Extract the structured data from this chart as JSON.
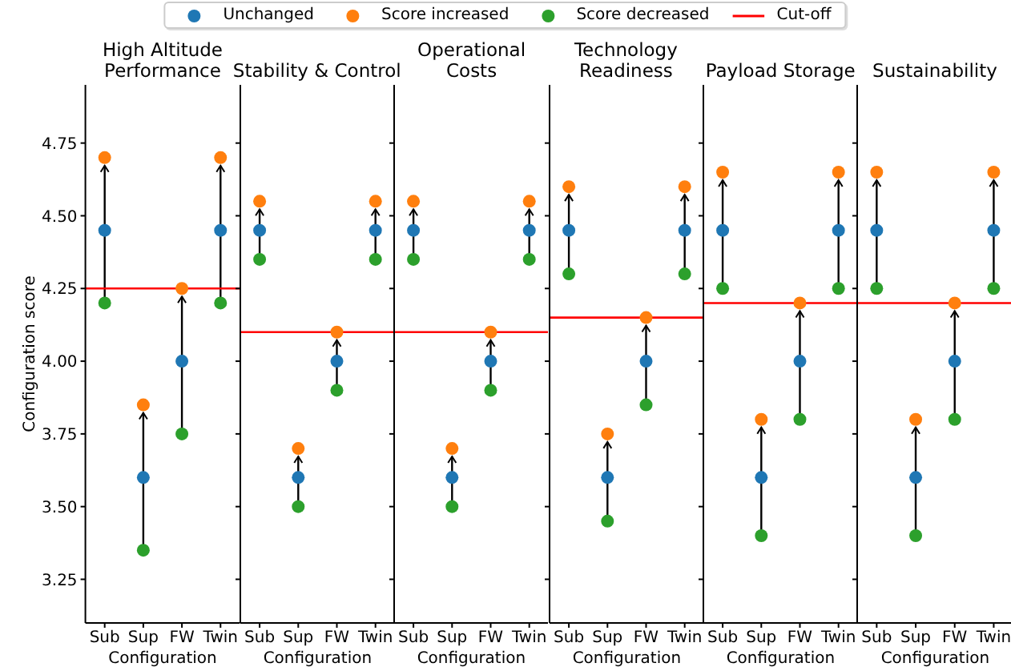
{
  "chart_data": [
    {
      "type": "scatter",
      "title": "High Altitude\nPerformance",
      "xlabel": "Configuration",
      "ylabel": "Configuration score",
      "categories": [
        "Sub",
        "Sup",
        "FW",
        "Twin"
      ],
      "ylim": [
        3.1,
        4.95
      ],
      "yticks": [
        3.25,
        {
          "value": 3.5,
          "label": "3.50"
        },
        3.75,
        {
          "value": 4.0,
          "label": "4.00"
        },
        4.25,
        {
          "value": 4.5,
          "label": "4.50"
        },
        4.75
      ],
      "marker": "circle",
      "legend": "top",
      "series": [
        {
          "name": "Unchanged",
          "color": "#1f77b4",
          "values": [
            4.45,
            3.6,
            4.0,
            4.45
          ]
        },
        {
          "name": "Score increased",
          "color": "#ff7f0e",
          "values": [
            4.7,
            3.85,
            4.25,
            4.7
          ]
        },
        {
          "name": "Score decreased",
          "color": "#2ca02c",
          "values": [
            4.2,
            3.35,
            3.75,
            4.2
          ]
        }
      ],
      "ref_lines": [
        {
          "axis": "y",
          "value": 4.25,
          "label": "Cut-off",
          "color": "#ff0000"
        }
      ]
    },
    {
      "type": "scatter",
      "title": "Stability & Control",
      "xlabel": "Configuration",
      "categories": [
        "Sub",
        "Sup",
        "FW",
        "Twin"
      ],
      "ylim": [
        3.1,
        4.95
      ],
      "yticks": [
        3.25,
        3.5,
        3.75,
        4.0,
        4.25,
        4.5,
        4.75
      ],
      "marker": "circle",
      "tick_labels": "x",
      "series": [
        {
          "color": "#1f77b4",
          "values": [
            4.45,
            3.6,
            4.0,
            4.45
          ]
        },
        {
          "color": "#ff7f0e",
          "values": [
            4.55,
            3.7,
            4.1,
            4.55
          ]
        },
        {
          "color": "#2ca02c",
          "values": [
            4.35,
            3.5,
            3.9,
            4.35
          ]
        }
      ],
      "ref_lines": [
        {
          "axis": "y",
          "value": 4.1,
          "color": "#ff0000"
        }
      ]
    },
    {
      "type": "scatter",
      "title": "Operational\nCosts",
      "xlabel": "Configuration",
      "categories": [
        "Sub",
        "Sup",
        "FW",
        "Twin"
      ],
      "ylim": [
        3.1,
        4.95
      ],
      "yticks": [
        3.25,
        3.5,
        3.75,
        4.0,
        4.25,
        4.5,
        4.75
      ],
      "marker": "circle",
      "tick_labels": "x",
      "series": [
        {
          "color": "#1f77b4",
          "values": [
            4.45,
            3.6,
            4.0,
            4.45
          ]
        },
        {
          "color": "#ff7f0e",
          "values": [
            4.55,
            3.7,
            4.1,
            4.55
          ]
        },
        {
          "color": "#2ca02c",
          "values": [
            4.35,
            3.5,
            3.9,
            4.35
          ]
        }
      ],
      "ref_lines": [
        {
          "axis": "y",
          "value": 4.1,
          "color": "#ff0000"
        }
      ]
    },
    {
      "type": "scatter",
      "title": "Technology\nReadiness",
      "xlabel": "Configuration",
      "categories": [
        "Sub",
        "Sup",
        "FW",
        "Twin"
      ],
      "ylim": [
        3.1,
        4.95
      ],
      "yticks": [
        3.25,
        3.5,
        3.75,
        4.0,
        4.25,
        4.5,
        4.75
      ],
      "marker": "circle",
      "tick_labels": "x",
      "series": [
        {
          "color": "#1f77b4",
          "values": [
            4.45,
            3.6,
            4.0,
            4.45
          ]
        },
        {
          "color": "#ff7f0e",
          "values": [
            4.6,
            3.75,
            4.15,
            4.6
          ]
        },
        {
          "color": "#2ca02c",
          "values": [
            4.3,
            3.45,
            3.85,
            4.3
          ]
        }
      ],
      "ref_lines": [
        {
          "axis": "y",
          "value": 4.15,
          "color": "#ff0000"
        }
      ]
    },
    {
      "type": "scatter",
      "title": "Payload Storage",
      "xlabel": "Configuration",
      "categories": [
        "Sub",
        "Sup",
        "FW",
        "Twin"
      ],
      "ylim": [
        3.1,
        4.95
      ],
      "yticks": [
        3.25,
        3.5,
        3.75,
        4.0,
        4.25,
        4.5,
        4.75
      ],
      "marker": "circle",
      "tick_labels": "x",
      "series": [
        {
          "color": "#1f77b4",
          "values": [
            4.45,
            3.6,
            4.0,
            4.45
          ]
        },
        {
          "color": "#ff7f0e",
          "values": [
            4.65,
            3.8,
            4.2,
            4.65
          ]
        },
        {
          "color": "#2ca02c",
          "values": [
            4.25,
            3.4,
            3.8,
            4.25
          ]
        }
      ],
      "ref_lines": [
        {
          "axis": "y",
          "value": 4.2,
          "color": "#ff0000"
        }
      ]
    },
    {
      "type": "scatter",
      "title": "Sustainability",
      "xlabel": "Configuration",
      "categories": [
        "Sub",
        "Sup",
        "FW",
        "Twin"
      ],
      "ylim": [
        3.1,
        4.95
      ],
      "yticks": [
        3.25,
        3.5,
        3.75,
        4.0,
        4.25,
        4.5,
        4.75
      ],
      "marker": "circle",
      "tick_labels": "x",
      "series": [
        {
          "color": "#1f77b4",
          "values": [
            4.45,
            3.6,
            4.0,
            4.45
          ]
        },
        {
          "color": "#ff7f0e",
          "values": [
            4.65,
            3.8,
            4.2,
            4.65
          ]
        },
        {
          "color": "#2ca02c",
          "values": [
            4.25,
            3.4,
            3.8,
            4.25
          ]
        }
      ],
      "ref_lines": [
        {
          "axis": "y",
          "value": 4.2,
          "color": "#ff0000"
        }
      ]
    }
  ]
}
